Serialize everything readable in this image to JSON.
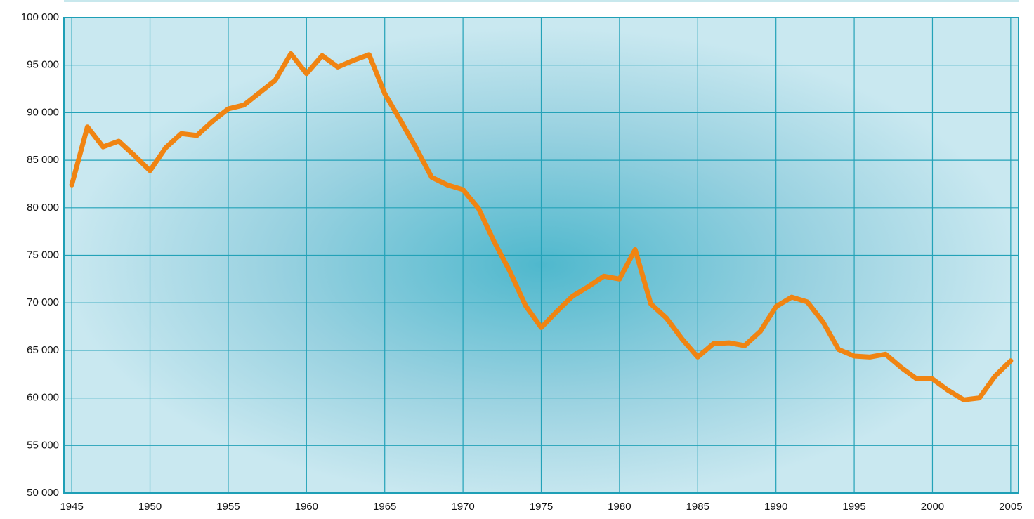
{
  "chart_data": {
    "type": "line",
    "x": [
      1945,
      1946,
      1947,
      1948,
      1949,
      1950,
      1951,
      1952,
      1953,
      1954,
      1955,
      1956,
      1957,
      1958,
      1959,
      1960,
      1961,
      1962,
      1963,
      1964,
      1965,
      1966,
      1967,
      1968,
      1969,
      1970,
      1971,
      1972,
      1973,
      1974,
      1975,
      1976,
      1977,
      1978,
      1979,
      1980,
      1981,
      1982,
      1983,
      1984,
      1985,
      1986,
      1987,
      1988,
      1989,
      1990,
      1991,
      1992,
      1993,
      1994,
      1995,
      1996,
      1997,
      1998,
      1999,
      2000,
      2001,
      2002,
      2003,
      2004,
      2005
    ],
    "values": [
      82400,
      88500,
      86400,
      87000,
      85500,
      83900,
      86300,
      87800,
      87600,
      89100,
      90400,
      90800,
      92100,
      93400,
      96200,
      94100,
      96000,
      94800,
      95500,
      96100,
      92000,
      89200,
      86300,
      83200,
      82400,
      81900,
      79900,
      76400,
      73300,
      69700,
      67400,
      69100,
      70700,
      71700,
      72800,
      72500,
      75600,
      69900,
      68400,
      66200,
      64300,
      65700,
      65800,
      65500,
      67000,
      69600,
      70600,
      70100,
      68000,
      65100,
      64400,
      64300,
      64600,
      63200,
      62000,
      62000,
      60800,
      59800,
      60000,
      62300,
      63900
    ],
    "color": "#f08412",
    "xlim": [
      1944.5,
      2005.5
    ],
    "xticks": [
      1945,
      1950,
      1955,
      1960,
      1965,
      1970,
      1975,
      1980,
      1985,
      1990,
      1995,
      2000,
      2005
    ],
    "ylim": [
      50000,
      100000
    ],
    "yticks": [
      {
        "value": 50000,
        "label": "50 000"
      },
      {
        "value": 55000,
        "label": "55 000"
      },
      {
        "value": 60000,
        "label": "60 000"
      },
      {
        "value": 65000,
        "label": "65 000"
      },
      {
        "value": 70000,
        "label": "70 000"
      },
      {
        "value": 75000,
        "label": "75 000"
      },
      {
        "value": 80000,
        "label": "80 000"
      },
      {
        "value": 85000,
        "label": "85 000"
      },
      {
        "value": 90000,
        "label": "90 000"
      },
      {
        "value": 95000,
        "label": "95 000"
      },
      {
        "value": 100000,
        "label": "100 000"
      }
    ],
    "grid": true
  }
}
